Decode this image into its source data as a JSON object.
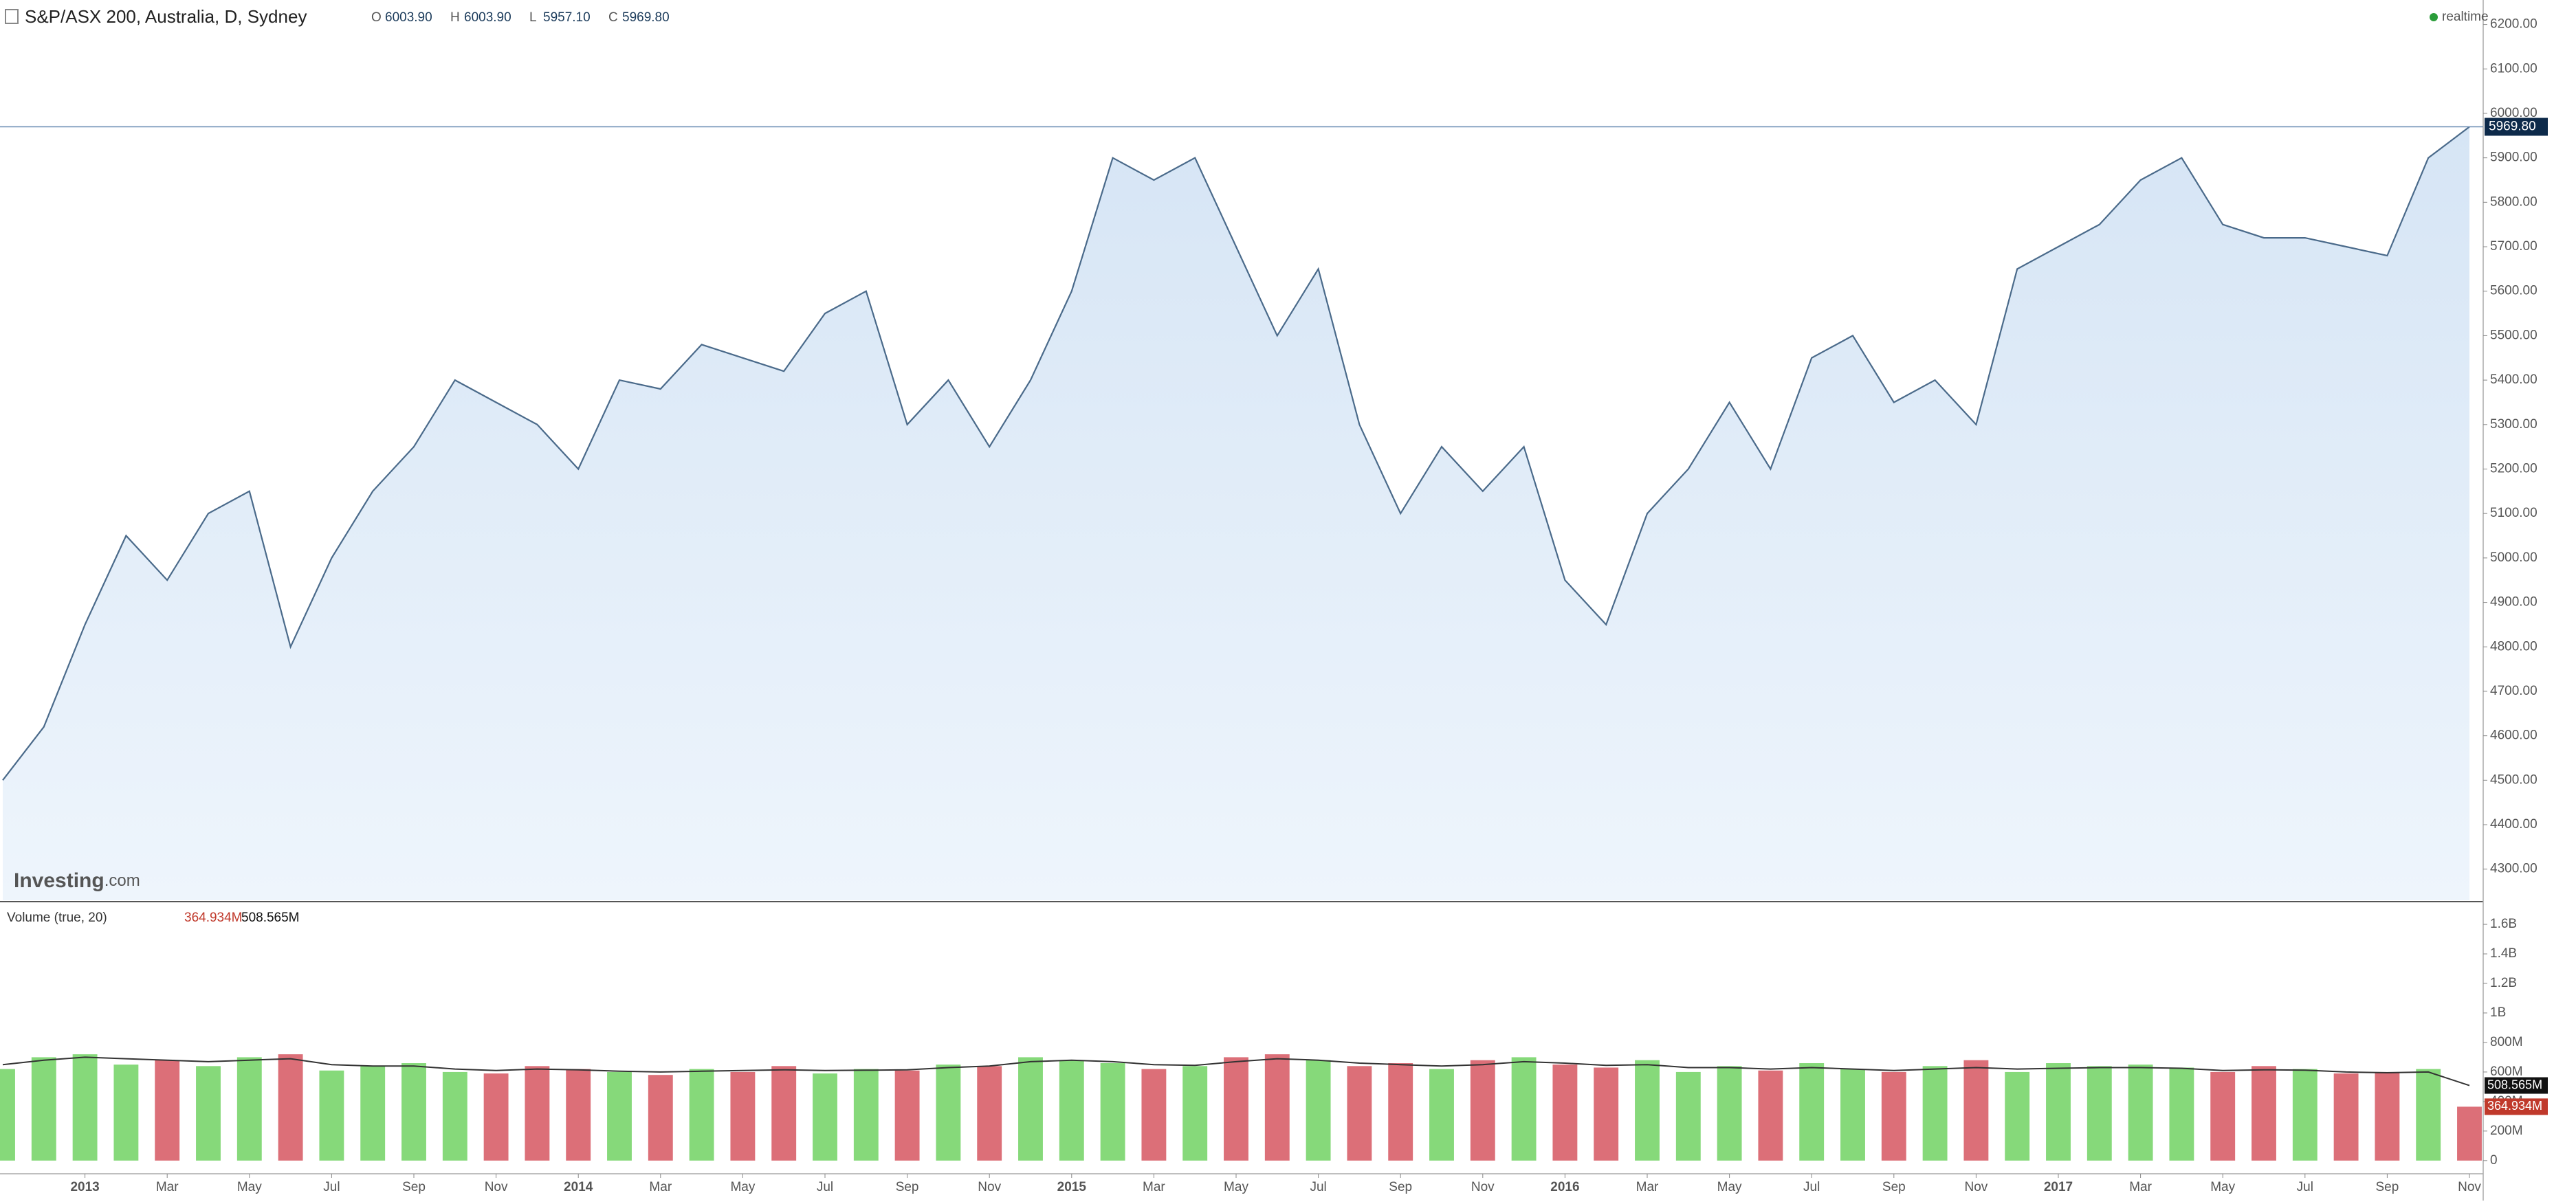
{
  "header": {
    "ohlc": [
      {
        "key": "O",
        "value": "6003.90"
      },
      {
        "key": "H",
        "value": "6003.90"
      },
      {
        "key": "L",
        "value": "5957.10"
      },
      {
        "key": "C",
        "value": "5969.80"
      }
    ],
    "status": "realtime",
    "logo": "Investing",
    "logo_suffix": ".com"
  },
  "chart_data": [
    {
      "type": "area",
      "title": "S&P/ASX 200, Australia, D, Sydney",
      "x": [
        "2012-11",
        "2012-12",
        "2013-01",
        "2013-02",
        "2013-03",
        "2013-04",
        "2013-05",
        "2013-06",
        "2013-07",
        "2013-08",
        "2013-09",
        "2013-10",
        "2013-11",
        "2013-12",
        "2014-01",
        "2014-02",
        "2014-03",
        "2014-04",
        "2014-05",
        "2014-06",
        "2014-07",
        "2014-08",
        "2014-09",
        "2014-10",
        "2014-11",
        "2014-12",
        "2015-01",
        "2015-02",
        "2015-03",
        "2015-04",
        "2015-05",
        "2015-06",
        "2015-07",
        "2015-08",
        "2015-09",
        "2015-10",
        "2015-11",
        "2015-12",
        "2016-01",
        "2016-02",
        "2016-03",
        "2016-04",
        "2016-05",
        "2016-06",
        "2016-07",
        "2016-08",
        "2016-09",
        "2016-10",
        "2016-11",
        "2016-12",
        "2017-01",
        "2017-02",
        "2017-03",
        "2017-04",
        "2017-05",
        "2017-06",
        "2017-07",
        "2017-08",
        "2017-09",
        "2017-10",
        "2017-11"
      ],
      "series": [
        {
          "color": "#4a6a8a",
          "values": [
            4500,
            4620,
            4850,
            5050,
            4950,
            5100,
            5150,
            4800,
            5000,
            5150,
            5250,
            5400,
            5350,
            5300,
            5200,
            5400,
            5380,
            5480,
            5450,
            5420,
            5550,
            5600,
            5300,
            5400,
            5250,
            5400,
            5600,
            5900,
            5850,
            5900,
            5700,
            5500,
            5650,
            5300,
            5100,
            5250,
            5150,
            5250,
            4950,
            4850,
            5100,
            5200,
            5350,
            5200,
            5450,
            5500,
            5350,
            5400,
            5300,
            5650,
            5700,
            5750,
            5850,
            5900,
            5750,
            5720,
            5720,
            5700,
            5680,
            5900,
            5969.8
          ]
        }
      ],
      "ylim": [
        4230,
        6255
      ],
      "yticks": [
        {
          "value": 4300,
          "label": "4300.00"
        },
        {
          "value": 4400,
          "label": "4400.00"
        },
        {
          "value": 4500,
          "label": "4500.00"
        },
        {
          "value": 4600,
          "label": "4600.00"
        },
        {
          "value": 4700,
          "label": "4700.00"
        },
        {
          "value": 4800,
          "label": "4800.00"
        },
        {
          "value": 4900,
          "label": "4900.00"
        },
        {
          "value": 5000,
          "label": "5000.00"
        },
        {
          "value": 5100,
          "label": "5100.00"
        },
        {
          "value": 5200,
          "label": "5200.00"
        },
        {
          "value": 5300,
          "label": "5300.00"
        },
        {
          "value": 5400,
          "label": "5400.00"
        },
        {
          "value": 5500,
          "label": "5500.00"
        },
        {
          "value": 5600,
          "label": "5600.00"
        },
        {
          "value": 5700,
          "label": "5700.00"
        },
        {
          "value": 5800,
          "label": "5800.00"
        },
        {
          "value": 5900,
          "label": "5900.00"
        },
        {
          "value": 6000,
          "label": "6000.00"
        },
        {
          "value": 6100,
          "label": "6100.00"
        },
        {
          "value": 6200,
          "label": "6200.00"
        }
      ],
      "last_value": {
        "value": 5969.8,
        "label": "5969.80"
      }
    },
    {
      "type": "bar",
      "title": "Volume (true, 20)",
      "x": [
        "2012-11",
        "2012-12",
        "2013-01",
        "2013-02",
        "2013-03",
        "2013-04",
        "2013-05",
        "2013-06",
        "2013-07",
        "2013-08",
        "2013-09",
        "2013-10",
        "2013-11",
        "2013-12",
        "2014-01",
        "2014-02",
        "2014-03",
        "2014-04",
        "2014-05",
        "2014-06",
        "2014-07",
        "2014-08",
        "2014-09",
        "2014-10",
        "2014-11",
        "2014-12",
        "2015-01",
        "2015-02",
        "2015-03",
        "2015-04",
        "2015-05",
        "2015-06",
        "2015-07",
        "2015-08",
        "2015-09",
        "2015-10",
        "2015-11",
        "2015-12",
        "2016-01",
        "2016-02",
        "2016-03",
        "2016-04",
        "2016-05",
        "2016-06",
        "2016-07",
        "2016-08",
        "2016-09",
        "2016-10",
        "2016-11",
        "2016-12",
        "2017-01",
        "2017-02",
        "2017-03",
        "2017-04",
        "2017-05",
        "2017-06",
        "2017-07",
        "2017-08",
        "2017-09",
        "2017-10",
        "2017-11"
      ],
      "series": [
        {
          "values": [
            620000000,
            700000000,
            720000000,
            650000000,
            680000000,
            640000000,
            700000000,
            720000000,
            610000000,
            640000000,
            660000000,
            600000000,
            590000000,
            640000000,
            620000000,
            600000000,
            580000000,
            620000000,
            600000000,
            640000000,
            590000000,
            620000000,
            610000000,
            650000000,
            640000000,
            700000000,
            680000000,
            660000000,
            620000000,
            640000000,
            700000000,
            720000000,
            680000000,
            640000000,
            660000000,
            620000000,
            680000000,
            700000000,
            650000000,
            630000000,
            680000000,
            600000000,
            640000000,
            610000000,
            660000000,
            620000000,
            600000000,
            640000000,
            680000000,
            600000000,
            660000000,
            640000000,
            650000000,
            630000000,
            600000000,
            640000000,
            620000000,
            590000000,
            600000000,
            620000000,
            364934000
          ],
          "colors": [
            "#86d97a",
            "#86d97a",
            "#86d97a",
            "#86d97a",
            "#dc6f78",
            "#86d97a",
            "#86d97a",
            "#dc6f78",
            "#86d97a",
            "#86d97a",
            "#86d97a",
            "#86d97a",
            "#dc6f78",
            "#dc6f78",
            "#dc6f78",
            "#86d97a",
            "#dc6f78",
            "#86d97a",
            "#dc6f78",
            "#dc6f78",
            "#86d97a",
            "#86d97a",
            "#dc6f78",
            "#86d97a",
            "#dc6f78",
            "#86d97a",
            "#86d97a",
            "#86d97a",
            "#dc6f78",
            "#86d97a",
            "#dc6f78",
            "#dc6f78",
            "#86d97a",
            "#dc6f78",
            "#dc6f78",
            "#86d97a",
            "#dc6f78",
            "#86d97a",
            "#dc6f78",
            "#dc6f78",
            "#86d97a",
            "#86d97a",
            "#86d97a",
            "#dc6f78",
            "#86d97a",
            "#86d97a",
            "#dc6f78",
            "#86d97a",
            "#dc6f78",
            "#86d97a",
            "#86d97a",
            "#86d97a",
            "#86d97a",
            "#86d97a",
            "#dc6f78",
            "#dc6f78",
            "#86d97a",
            "#dc6f78",
            "#dc6f78",
            "#86d97a",
            "#dc6f78"
          ],
          "last": {
            "value": 364934000,
            "label": "364.934M"
          },
          "color": "#c0392b"
        },
        {
          "type": "line",
          "color": "#333333",
          "values": [
            650000000,
            680000000,
            700000000,
            690000000,
            680000000,
            670000000,
            680000000,
            690000000,
            650000000,
            640000000,
            640000000,
            620000000,
            610000000,
            620000000,
            615000000,
            605000000,
            600000000,
            605000000,
            610000000,
            615000000,
            610000000,
            612000000,
            615000000,
            630000000,
            640000000,
            670000000,
            680000000,
            670000000,
            650000000,
            645000000,
            670000000,
            690000000,
            680000000,
            660000000,
            650000000,
            640000000,
            650000000,
            670000000,
            660000000,
            645000000,
            650000000,
            630000000,
            630000000,
            620000000,
            630000000,
            620000000,
            610000000,
            620000000,
            630000000,
            620000000,
            625000000,
            630000000,
            630000000,
            625000000,
            610000000,
            615000000,
            612000000,
            600000000,
            595000000,
            600000000,
            508565000
          ],
          "last": {
            "value": 508565000,
            "label": "508.565M"
          }
        }
      ],
      "ylim": [
        -80000000,
        1740000000
      ],
      "yticks": [
        0,
        {
          "value": 200000000,
          "label": "200M"
        },
        {
          "value": 400000000,
          "label": "400M"
        },
        {
          "value": 600000000,
          "label": "600M"
        },
        {
          "value": 800000000,
          "label": "800M"
        },
        {
          "value": 1000000000,
          "label": "1B"
        },
        {
          "value": 1200000000,
          "label": "1.2B"
        },
        {
          "value": 1400000000,
          "label": "1.4B"
        },
        {
          "value": 1600000000,
          "label": "1.6B"
        }
      ],
      "xticks": [
        {
          "value": "2013-01",
          "label": "2013"
        },
        {
          "value": "2013-03",
          "label": "Mar"
        },
        {
          "value": "2013-05",
          "label": "May"
        },
        {
          "value": "2013-07",
          "label": "Jul"
        },
        {
          "value": "2013-09",
          "label": "Sep"
        },
        {
          "value": "2013-11",
          "label": "Nov"
        },
        {
          "value": "2014-01",
          "label": "2014"
        },
        {
          "value": "2014-03",
          "label": "Mar"
        },
        {
          "value": "2014-05",
          "label": "May"
        },
        {
          "value": "2014-07",
          "label": "Jul"
        },
        {
          "value": "2014-09",
          "label": "Sep"
        },
        {
          "value": "2014-11",
          "label": "Nov"
        },
        {
          "value": "2015-01",
          "label": "2015"
        },
        {
          "value": "2015-03",
          "label": "Mar"
        },
        {
          "value": "2015-05",
          "label": "May"
        },
        {
          "value": "2015-07",
          "label": "Jul"
        },
        {
          "value": "2015-09",
          "label": "Sep"
        },
        {
          "value": "2015-11",
          "label": "Nov"
        },
        {
          "value": "2016-01",
          "label": "2016"
        },
        {
          "value": "2016-03",
          "label": "Mar"
        },
        {
          "value": "2016-05",
          "label": "May"
        },
        {
          "value": "2016-07",
          "label": "Jul"
        },
        {
          "value": "2016-09",
          "label": "Sep"
        },
        {
          "value": "2016-11",
          "label": "Nov"
        },
        {
          "value": "2017-01",
          "label": "2017"
        },
        {
          "value": "2017-03",
          "label": "Mar"
        },
        {
          "value": "2017-05",
          "label": "May"
        },
        {
          "value": "2017-07",
          "label": "Jul"
        },
        {
          "value": "2017-09",
          "label": "Sep"
        },
        {
          "value": "2017-11",
          "label": "Nov"
        }
      ]
    }
  ]
}
